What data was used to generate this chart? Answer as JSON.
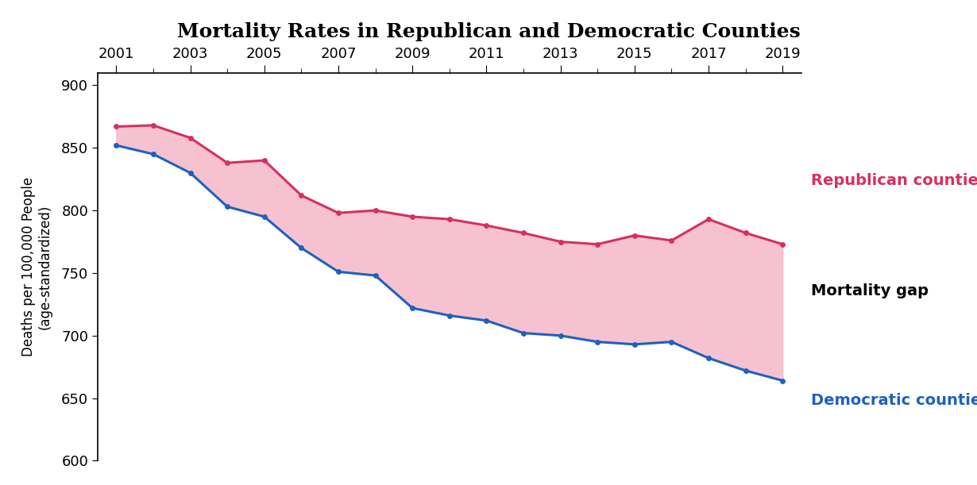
{
  "title": "Mortality Rates in Republican and Democratic Counties",
  "years": [
    2001,
    2002,
    2003,
    2004,
    2005,
    2006,
    2007,
    2008,
    2009,
    2010,
    2011,
    2012,
    2013,
    2014,
    2015,
    2016,
    2017,
    2018,
    2019
  ],
  "republican": [
    867,
    868,
    858,
    838,
    840,
    812,
    798,
    800,
    795,
    793,
    788,
    782,
    775,
    773,
    780,
    776,
    793,
    782,
    773
  ],
  "democratic": [
    852,
    845,
    830,
    803,
    795,
    770,
    751,
    748,
    722,
    716,
    712,
    702,
    700,
    695,
    693,
    695,
    682,
    672,
    664
  ],
  "republican_color": "#d63060",
  "democratic_color": "#2060c0",
  "fill_color": "#f5b8c8",
  "fill_alpha": 0.85,
  "ylabel": "Deaths per 100,000 People\n(age-standardized)",
  "ylim": [
    600,
    910
  ],
  "yticks": [
    600,
    650,
    700,
    750,
    800,
    850,
    900
  ],
  "xlim": [
    2000.5,
    2019.5
  ],
  "xticks": [
    2001,
    2003,
    2005,
    2007,
    2009,
    2011,
    2013,
    2015,
    2017,
    2019
  ],
  "title_fontsize": 18,
  "label_fontsize": 12,
  "tick_fontsize": 13,
  "annotation_republican": "Republican counties",
  "annotation_democratic": "Democratic counties",
  "annotation_gap": "Mortality gap",
  "republican_ann_x": 2014.3,
  "republican_ann_y": 824,
  "democratic_ann_x": 2014.3,
  "democratic_ann_y": 648,
  "gap_ann_x": 2013.5,
  "gap_ann_y": 736,
  "line_width": 2.2,
  "marker": "o",
  "marker_size": 5,
  "title_bg_color": "#e8e8e8",
  "plot_background": "#ffffff",
  "fig_background": "#ffffff"
}
